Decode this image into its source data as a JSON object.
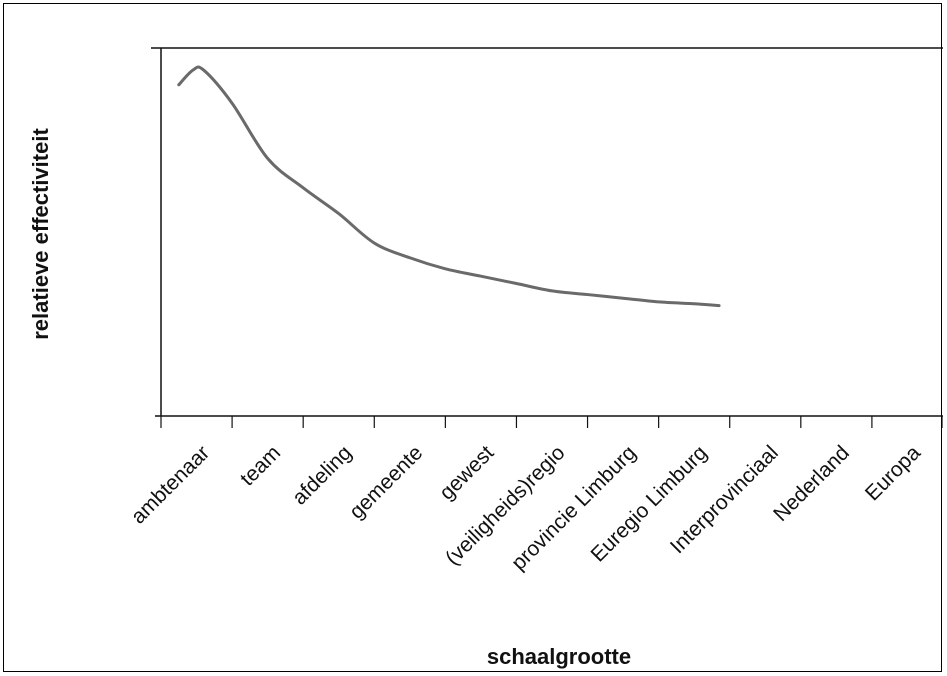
{
  "chart_data": {
    "type": "line",
    "title": "",
    "xlabel": "schaalgrootte",
    "ylabel": "relatieve effectiviteit",
    "categories": [
      "ambtenaar",
      "team",
      "afdeling",
      "gemeente",
      "gewest",
      "(veiligheids)regio",
      "provincie Limburg",
      "Euregio Limburg",
      "Interprovinciaal",
      "Nederland",
      "Europa"
    ],
    "ylim": [
      0,
      100
    ],
    "grid": false,
    "legend": "none",
    "series": [
      {
        "color": "#6a6a6a",
        "x": [
          0.25,
          0.45,
          0.6,
          1.0,
          1.5,
          2.0,
          2.5,
          3.0,
          3.5,
          4.0,
          4.5,
          5.0,
          5.5,
          6.0,
          6.5,
          7.0,
          7.5,
          7.85
        ],
        "values": [
          90,
          94,
          94,
          85,
          70,
          62,
          55,
          47,
          43,
          40,
          38,
          36,
          34,
          33,
          32,
          31,
          30.5,
          30
        ]
      }
    ]
  }
}
